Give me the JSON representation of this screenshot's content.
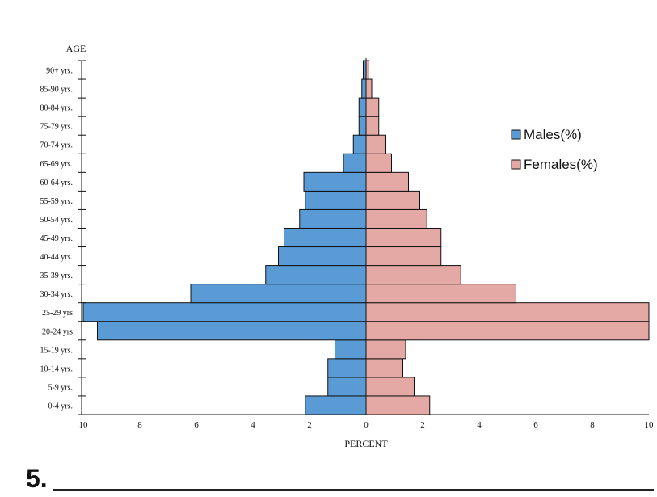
{
  "chart_data": {
    "type": "bar",
    "orientation": "horizontal",
    "subtype": "population-pyramid",
    "ylabel": "AGE",
    "xlabel": "PERCENT",
    "xlim": [
      -10,
      10
    ],
    "x_ticks": [
      "10",
      "8",
      "6",
      "4",
      "2",
      "0",
      "2",
      "4",
      "6",
      "8",
      "10"
    ],
    "categories": [
      "0-4 yrs.",
      "5-9 yrs.",
      "10-14 yrs.",
      "15-19 yrs.",
      "20-24 yrs",
      "25-29 yrs",
      "30-34 yrs.",
      "35-39 yrs.",
      "40-44 yrs.",
      "45-49 yrs.",
      "50-54 yrs.",
      "55-59 yrs.",
      "60-64 yrs.",
      "65-69 yrs.",
      "70-74 yrs.",
      "75-79 yrs.",
      "80-84 yrs.",
      "85-90 yrs.",
      "90+ yrs."
    ],
    "series": [
      {
        "name": "Males(%)",
        "color": "#5b9bd5",
        "values": [
          2.15,
          1.35,
          1.35,
          1.1,
          9.5,
          10.0,
          6.2,
          3.55,
          3.1,
          2.9,
          2.35,
          2.15,
          2.2,
          0.8,
          0.45,
          0.25,
          0.25,
          0.15,
          0.1
        ]
      },
      {
        "name": "Females(%)",
        "color": "#e5a9a5",
        "values": [
          2.25,
          1.7,
          1.3,
          1.4,
          10.0,
          10.0,
          5.3,
          3.35,
          2.65,
          2.65,
          2.15,
          1.9,
          1.5,
          0.9,
          0.7,
          0.45,
          0.45,
          0.2,
          0.1
        ]
      }
    ],
    "grid": false,
    "legend_position": "right"
  },
  "question": {
    "number": "5."
  }
}
